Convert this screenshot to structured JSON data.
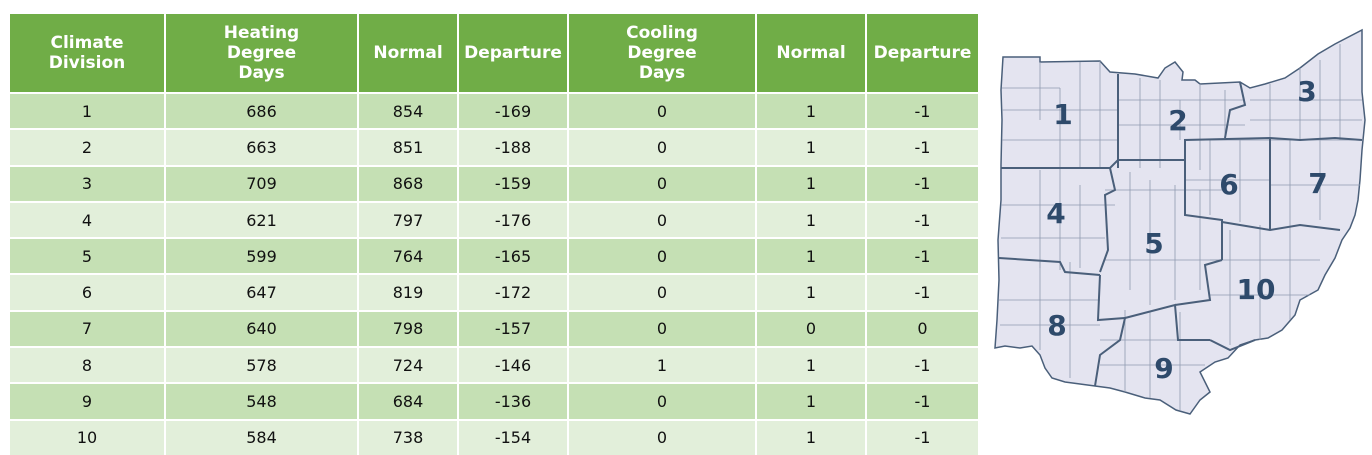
{
  "table": {
    "headers": [
      [
        "Climate",
        "Division"
      ],
      [
        "Heating",
        "Degree",
        "Days"
      ],
      [
        "Normal"
      ],
      [
        "Departure"
      ],
      [
        "Cooling",
        "Degree",
        "Days"
      ],
      [
        "Normal"
      ],
      [
        "Departure"
      ]
    ],
    "rows": [
      [
        "1",
        "686",
        "854",
        "-169",
        "0",
        "1",
        "-1"
      ],
      [
        "2",
        "663",
        "851",
        "-188",
        "0",
        "1",
        "-1"
      ],
      [
        "3",
        "709",
        "868",
        "-159",
        "0",
        "1",
        "-1"
      ],
      [
        "4",
        "621",
        "797",
        "-176",
        "0",
        "1",
        "-1"
      ],
      [
        "5",
        "599",
        "764",
        "-165",
        "0",
        "1",
        "-1"
      ],
      [
        "6",
        "647",
        "819",
        "-172",
        "0",
        "1",
        "-1"
      ],
      [
        "7",
        "640",
        "798",
        "-157",
        "0",
        "0",
        "0"
      ],
      [
        "8",
        "578",
        "724",
        "-146",
        "1",
        "1",
        "-1"
      ],
      [
        "9",
        "548",
        "684",
        "-136",
        "0",
        "1",
        "-1"
      ],
      [
        "10",
        "584",
        "738",
        "-154",
        "0",
        "1",
        "-1"
      ]
    ]
  },
  "map": {
    "division_labels": [
      "1",
      "2",
      "3",
      "4",
      "5",
      "6",
      "7",
      "8",
      "9",
      "10"
    ],
    "fill_color": "#e4e4f0",
    "border_color": "#4a5f7a"
  },
  "colors": {
    "header": "#70ad47",
    "row_dark": "#c5e0b4",
    "row_light": "#e2efda",
    "label": "#2e4a6b"
  }
}
